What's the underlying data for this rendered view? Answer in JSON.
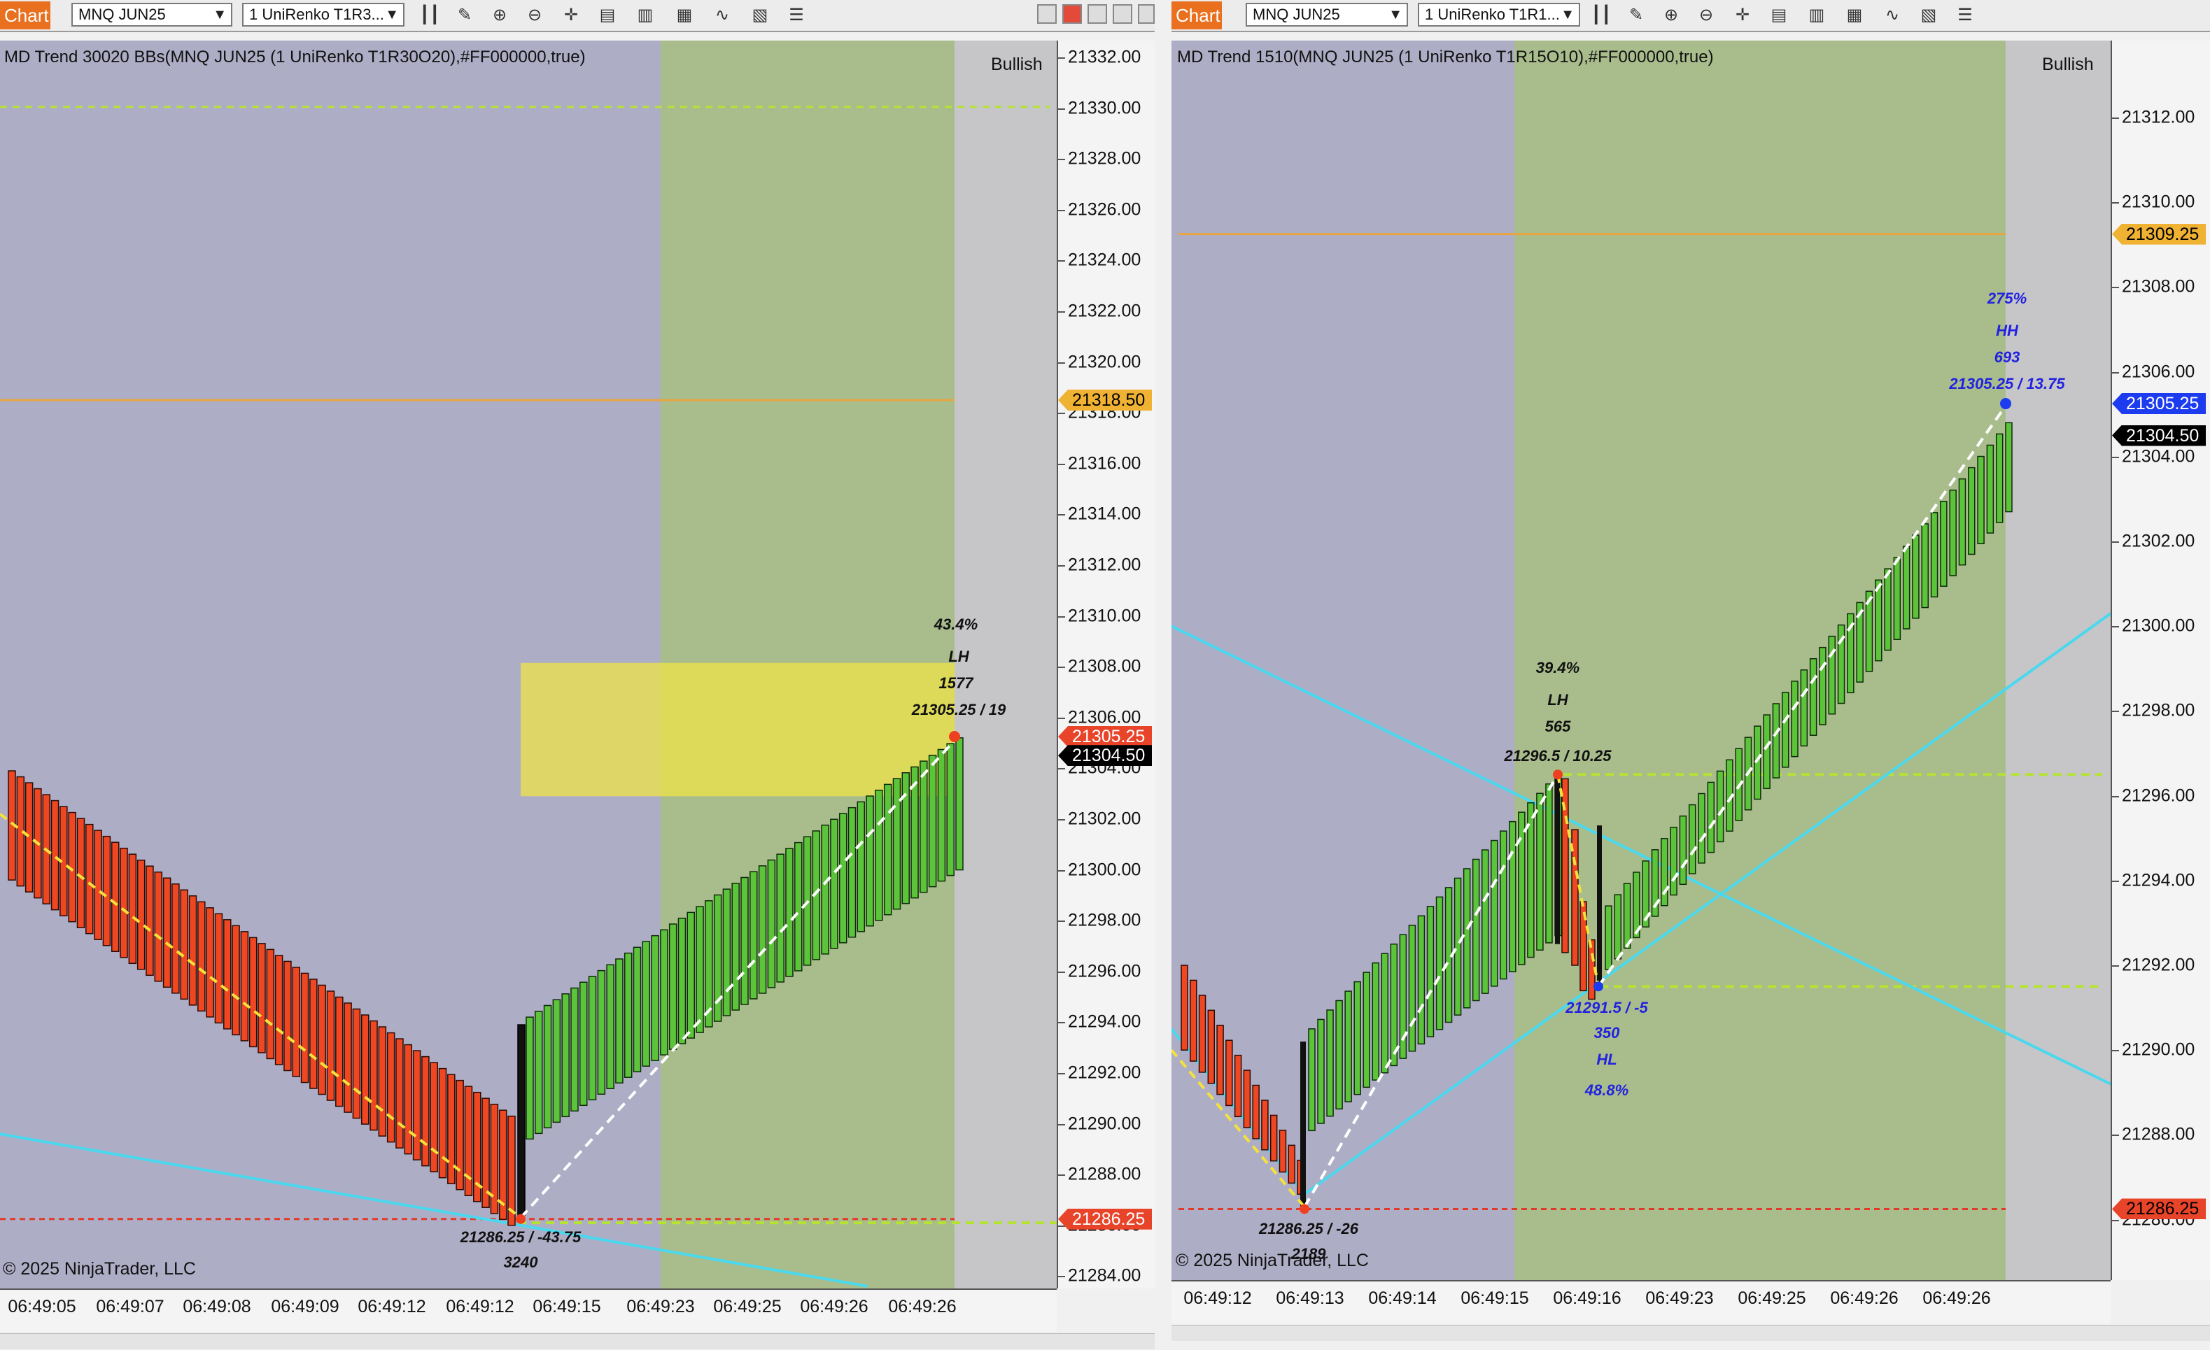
{
  "left": {
    "tab_label": "Chart",
    "instrument": "MNQ JUN25",
    "bar_type": "1 UniRenko T1R3...",
    "title": "MD Trend 30020 BBs(MNQ JUN25 (1 UniRenko T1R30O20),#FF000000,true)",
    "bias": "Bullish",
    "copyright": "© 2025 NinjaTrader, LLC",
    "price_ticks": [
      "21332.00",
      "21330.00",
      "21328.00",
      "21326.00",
      "21324.00",
      "21322.00",
      "21320.00",
      "21318.00",
      "21316.00",
      "21314.00",
      "21312.00",
      "21310.00",
      "21308.00",
      "21306.00",
      "21304.00",
      "21302.00",
      "21300.00",
      "21298.00",
      "21296.00",
      "21294.00",
      "21292.00",
      "21290.00",
      "21288.00",
      "21286.00",
      "21284.00"
    ],
    "price_tags": [
      {
        "label": "21318.50",
        "value": 21318.5,
        "bg": "#f0b232",
        "fg": "#000000"
      },
      {
        "label": "21305.25",
        "value": 21305.25,
        "bg": "#e8442a",
        "fg": "#ffffff"
      },
      {
        "label": "21304.50",
        "value": 21304.5,
        "bg": "#000000",
        "fg": "#ffffff"
      },
      {
        "label": "21286.25",
        "value": 21286.25,
        "bg": "#e8442a",
        "fg": "#ffffff"
      }
    ],
    "time_labels": [
      "06:49:05",
      "06:49:07",
      "06:49:08",
      "06:49:09",
      "06:49:12",
      "06:49:12",
      "06:49:15",
      "06:49:23",
      "06:49:25",
      "06:49:26",
      "06:49:26"
    ],
    "swing_high": {
      "pct": "43.4%",
      "type": "LH",
      "volume": "1577",
      "price": "21305.25 / 19"
    },
    "swing_low": {
      "price": "21286.25 / -43.75",
      "volume": "3240"
    }
  },
  "right": {
    "tab_label": "Chart",
    "instrument": "MNQ JUN25",
    "bar_type": "1 UniRenko T1R1...",
    "title": "MD Trend 1510(MNQ JUN25 (1 UniRenko T1R15O10),#FF000000,true)",
    "bias": "Bullish",
    "copyright": "© 2025 NinjaTrader, LLC",
    "price_ticks": [
      "21312.00",
      "21310.00",
      "21308.00",
      "21306.00",
      "21304.00",
      "21302.00",
      "21300.00",
      "21298.00",
      "21296.00",
      "21294.00",
      "21292.00",
      "21290.00",
      "21288.00",
      "21286.00"
    ],
    "price_tags": [
      {
        "label": "21309.25",
        "value": 21309.25,
        "bg": "#f0b232",
        "fg": "#000000"
      },
      {
        "label": "21305.25",
        "value": 21305.25,
        "bg": "#1d3cf0",
        "fg": "#ffffff"
      },
      {
        "label": "21304.50",
        "value": 21304.5,
        "bg": "#000000",
        "fg": "#ffffff"
      },
      {
        "label": "21286.25",
        "value": 21286.25,
        "bg": "#e8442a",
        "fg": "#000000"
      }
    ],
    "time_labels": [
      "06:49:12",
      "06:49:13",
      "06:49:14",
      "06:49:15",
      "06:49:16",
      "06:49:23",
      "06:49:25",
      "06:49:26",
      "06:49:26"
    ],
    "swing_hh": {
      "pct": "275%",
      "type": "HH",
      "volume": "693",
      "price": "21305.25 / 13.75"
    },
    "swing_lh": {
      "pct": "39.4%",
      "type": "LH",
      "volume": "565",
      "price": "21296.5 / 10.25"
    },
    "swing_hl": {
      "price": "21291.5 / -5",
      "volume": "350",
      "type": "HL",
      "pct": "48.8%"
    },
    "swing_low": {
      "price": "21286.25 / -26",
      "volume": "2189"
    }
  },
  "colors": {
    "up_bar": "#5cc43a",
    "down_bar": "#ee4722",
    "zone_purple": "#aeadc6",
    "zone_green": "#a9bd8c",
    "zone_grey": "#c6c6c8",
    "cyan_line": "#4ad8ee",
    "yellow_box": "#ece24a",
    "tab_orange": "#e8701e"
  }
}
